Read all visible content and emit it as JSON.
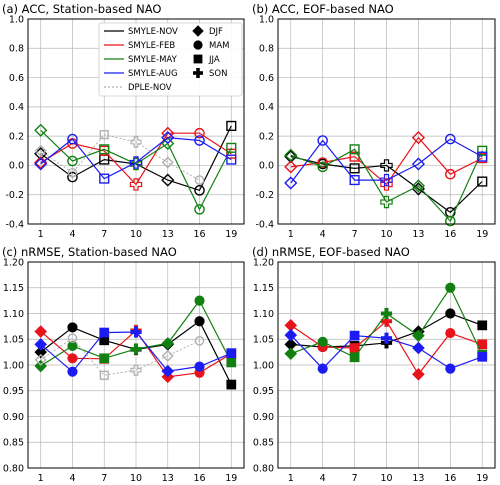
{
  "chart_data": [
    {
      "type": "line",
      "title": "(a) ACC, Station-based NAO",
      "x": [
        1,
        4,
        7,
        10,
        13,
        16,
        19
      ],
      "xticks": [
        "1",
        "4",
        "7",
        "10",
        "13",
        "16",
        "19"
      ],
      "ylim": [
        -0.4,
        1.0
      ],
      "yticks": [
        "-0.4",
        "-0.2",
        "0.0",
        "0.2",
        "0.4",
        "0.6",
        "0.8",
        "1.0"
      ],
      "grid": true,
      "legend_position": "top-right",
      "series": [
        {
          "name": "SMYLE-NOV",
          "color": "#000000",
          "values": [
            0.08,
            -0.08,
            0.04,
            0.01,
            -0.1,
            -0.17,
            0.27
          ]
        },
        {
          "name": "SMYLE-FEB",
          "color": "#e8141b",
          "values": [
            0.02,
            0.15,
            0.1,
            -0.13,
            0.22,
            0.22,
            0.08
          ]
        },
        {
          "name": "SMYLE-MAY",
          "color": "#118011",
          "values": [
            0.24,
            0.03,
            0.11,
            0.01,
            0.15,
            -0.3,
            0.12
          ]
        },
        {
          "name": "SMYLE-AUG",
          "color": "#1c1cf2",
          "values": [
            0.01,
            0.18,
            -0.09,
            0.02,
            0.19,
            0.17,
            0.04
          ]
        },
        {
          "name": "DPLE-NOV",
          "color": "#b0b0b0",
          "dashed": true,
          "values": [
            0.1,
            -0.05,
            0.21,
            0.16,
            0.02,
            -0.1,
            null
          ]
        }
      ]
    },
    {
      "type": "line",
      "title": "(b) ACC, EOF-based NAO",
      "x": [
        1,
        4,
        7,
        10,
        13,
        16,
        19
      ],
      "xticks": [
        "1",
        "4",
        "7",
        "10",
        "13",
        "16",
        "19"
      ],
      "ylim": [
        -0.4,
        1.0
      ],
      "yticks": [
        "-0.4",
        "-0.2",
        "0.0",
        "0.2",
        "0.4",
        "0.6",
        "0.8",
        "1.0"
      ],
      "grid": true,
      "series": [
        {
          "name": "SMYLE-NOV",
          "color": "#000000",
          "values": [
            0.06,
            0.01,
            -0.02,
            0.0,
            -0.16,
            -0.32,
            -0.11
          ]
        },
        {
          "name": "SMYLE-FEB",
          "color": "#e8141b",
          "values": [
            -0.01,
            0.02,
            0.06,
            -0.13,
            0.19,
            -0.06,
            0.05
          ]
        },
        {
          "name": "SMYLE-MAY",
          "color": "#118011",
          "values": [
            0.07,
            -0.01,
            0.11,
            -0.25,
            -0.14,
            -0.38,
            0.1
          ]
        },
        {
          "name": "SMYLE-AUG",
          "color": "#1c1cf2",
          "values": [
            -0.12,
            0.17,
            -0.1,
            -0.1,
            0.01,
            0.18,
            0.06
          ]
        }
      ]
    },
    {
      "type": "line",
      "title": "(c) nRMSE, Station-based NAO",
      "x": [
        1,
        4,
        7,
        10,
        13,
        16,
        19
      ],
      "xticks": [
        "1",
        "4",
        "7",
        "10",
        "13",
        "16",
        "19"
      ],
      "ylim": [
        0.8,
        1.2
      ],
      "yticks": [
        "0.80",
        "0.85",
        "0.90",
        "0.95",
        "1.00",
        "1.05",
        "1.10",
        "1.15",
        "1.20"
      ],
      "grid": true,
      "series": [
        {
          "name": "SMYLE-NOV",
          "color": "#000000",
          "values": [
            1.025,
            1.073,
            1.048,
            1.03,
            1.04,
            1.085,
            0.962
          ]
        },
        {
          "name": "SMYLE-FEB",
          "color": "#e8141b",
          "values": [
            1.065,
            1.013,
            1.012,
            1.067,
            0.977,
            0.985,
            1.022
          ]
        },
        {
          "name": "SMYLE-MAY",
          "color": "#118011",
          "values": [
            0.998,
            1.037,
            1.013,
            1.031,
            1.042,
            1.125,
            1.005
          ]
        },
        {
          "name": "SMYLE-AUG",
          "color": "#1c1cf2",
          "values": [
            1.04,
            0.987,
            1.063,
            1.064,
            0.988,
            0.997,
            1.023
          ]
        },
        {
          "name": "DPLE-NOV",
          "color": "#b0b0b0",
          "dashed": true,
          "values": [
            1.01,
            1.052,
            0.98,
            0.99,
            1.018,
            1.047,
            null
          ]
        }
      ]
    },
    {
      "type": "line",
      "title": "(d) nRMSE, EOF-based NAO",
      "x": [
        1,
        4,
        7,
        10,
        13,
        16,
        19
      ],
      "xticks": [
        "1",
        "4",
        "7",
        "10",
        "13",
        "16",
        "19"
      ],
      "ylim": [
        0.8,
        1.2
      ],
      "yticks": [
        "0.80",
        "0.85",
        "0.90",
        "0.95",
        "1.00",
        "1.05",
        "1.10",
        "1.15",
        "1.20"
      ],
      "grid": true,
      "series": [
        {
          "name": "SMYLE-NOV",
          "color": "#000000",
          "values": [
            1.04,
            1.035,
            1.037,
            1.043,
            1.065,
            1.1,
            1.077
          ]
        },
        {
          "name": "SMYLE-FEB",
          "color": "#e8141b",
          "values": [
            1.077,
            1.035,
            1.033,
            1.085,
            0.982,
            1.062,
            1.04
          ]
        },
        {
          "name": "SMYLE-MAY",
          "color": "#118011",
          "values": [
            1.022,
            1.045,
            1.015,
            1.1,
            1.057,
            1.15,
            1.02
          ]
        },
        {
          "name": "SMYLE-AUG",
          "color": "#1c1cf2",
          "values": [
            1.058,
            0.993,
            1.057,
            1.052,
            1.033,
            0.993,
            1.016
          ]
        }
      ]
    }
  ],
  "legend": {
    "series": [
      {
        "name": "SMYLE-NOV",
        "color": "#000000"
      },
      {
        "name": "SMYLE-FEB",
        "color": "#e8141b"
      },
      {
        "name": "SMYLE-MAY",
        "color": "#118011"
      },
      {
        "name": "SMYLE-AUG",
        "color": "#1c1cf2"
      },
      {
        "name": "DPLE-NOV",
        "color": "#b0b0b0",
        "dashed": true
      }
    ],
    "seasons": [
      {
        "name": "DJF",
        "marker": "diamond"
      },
      {
        "name": "MAM",
        "marker": "circle"
      },
      {
        "name": "JJA",
        "marker": "square"
      },
      {
        "name": "SON",
        "marker": "plus"
      }
    ]
  },
  "marker_cycle": [
    "diamond",
    "circle",
    "square",
    "plus",
    "diamond",
    "circle",
    "square"
  ],
  "open_marker_panels": [
    0,
    1
  ]
}
